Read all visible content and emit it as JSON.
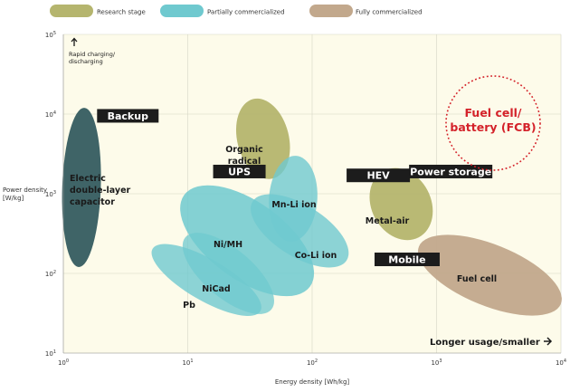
{
  "chart_data": {
    "type": "scatter",
    "title": "",
    "xlabel": "Energy density [Wh/kg]",
    "ylabel_lines": [
      "Power density",
      "[W/kg]"
    ],
    "xscale": "log",
    "yscale": "log",
    "xlim": [
      1,
      10000
    ],
    "ylim": [
      10,
      100000
    ],
    "x_ticks": [
      {
        "base": "10",
        "exp": "0"
      },
      {
        "base": "10",
        "exp": "1"
      },
      {
        "base": "10",
        "exp": "2"
      },
      {
        "base": "10",
        "exp": "3"
      },
      {
        "base": "10",
        "exp": "4"
      }
    ],
    "y_ticks": [
      {
        "base": "10",
        "exp": "1"
      },
      {
        "base": "10",
        "exp": "2"
      },
      {
        "base": "10",
        "exp": "3"
      },
      {
        "base": "10",
        "exp": "4"
      },
      {
        "base": "10",
        "exp": "5"
      }
    ],
    "legend": [
      {
        "name": "Research stage",
        "color": "#b5b56e"
      },
      {
        "name": "Partially commercialized",
        "color": "#6fc9cf"
      },
      {
        "name": "Fully commercialized",
        "color": "#c2a88c"
      }
    ],
    "regions": [
      {
        "name": "Electric double-layer capacitor",
        "label_lines": [
          "Electric",
          "double-layer",
          "capacitor"
        ],
        "category": "capacitor",
        "color": "#3f6467",
        "x_range": [
          0.98,
          2.0
        ],
        "y_range": [
          120,
          12000
        ]
      },
      {
        "name": "Organic radical",
        "label_lines": [
          "Organic",
          "radical"
        ],
        "category": "Research stage",
        "x_range": [
          25,
          65
        ],
        "y_range": [
          1500,
          16000
        ]
      },
      {
        "name": "Mn-Li ion",
        "label_lines": [
          "Mn-Li ion"
        ],
        "category": "Partially commercialized",
        "x_range": [
          45,
          110
        ],
        "y_range": [
          250,
          3000
        ]
      },
      {
        "name": "Ni/MH",
        "label_lines": [
          "Ni/MH"
        ],
        "category": "Partially commercialized",
        "x_range": [
          10,
          90
        ],
        "y_range": [
          60,
          1100
        ]
      },
      {
        "name": "Co-Li ion",
        "label_lines": [
          "Co-Li ion"
        ],
        "category": "Partially commercialized",
        "x_range": [
          35,
          180
        ],
        "y_range": [
          130,
          900
        ]
      },
      {
        "name": "Pb",
        "label_lines": [
          "Pb"
        ],
        "category": "Partially commercialized",
        "x_range": [
          5,
          40
        ],
        "y_range": [
          38,
          180
        ]
      },
      {
        "name": "NiCad",
        "label_lines": [
          "NiCad"
        ],
        "category": "Partially commercialized",
        "x_range": [
          9,
          50
        ],
        "y_range": [
          40,
          250
        ]
      },
      {
        "name": "Metal-air",
        "label_lines": [
          "Metal-air"
        ],
        "category": "Research stage",
        "x_range": [
          300,
          900
        ],
        "y_range": [
          250,
          2200
        ]
      },
      {
        "name": "Fuel cell",
        "label_lines": [
          "Fuel cell"
        ],
        "category": "Fully commercialized",
        "x_range": [
          800,
          9000
        ],
        "y_range": [
          30,
          300
        ]
      }
    ],
    "applications": [
      {
        "name": "Backup",
        "x": 3.3,
        "y": 9500
      },
      {
        "name": "UPS",
        "x": 26,
        "y": 1900
      },
      {
        "name": "HEV",
        "x": 340,
        "y": 1700
      },
      {
        "name": "Power storage",
        "x": 1300,
        "y": 1900
      },
      {
        "name": "Mobile",
        "x": 580,
        "y": 150
      }
    ],
    "annotations": [
      {
        "name": "Fuel cell/ battery (FCB)",
        "label_lines": [
          "Fuel cell/",
          "battery (FCB)"
        ],
        "color": "#d4222a"
      },
      {
        "name": "Rapid charging/ discharging",
        "label_lines": [
          "Rapid charging/",
          "discharging"
        ]
      },
      {
        "name": "Longer usage/smaller",
        "label_lines": [
          "Longer usage/smaller"
        ]
      }
    ],
    "colors": {
      "plot_bg": "#fdfbea",
      "grid": "#d6d6c4",
      "label_box": "#1c1c1c"
    }
  }
}
